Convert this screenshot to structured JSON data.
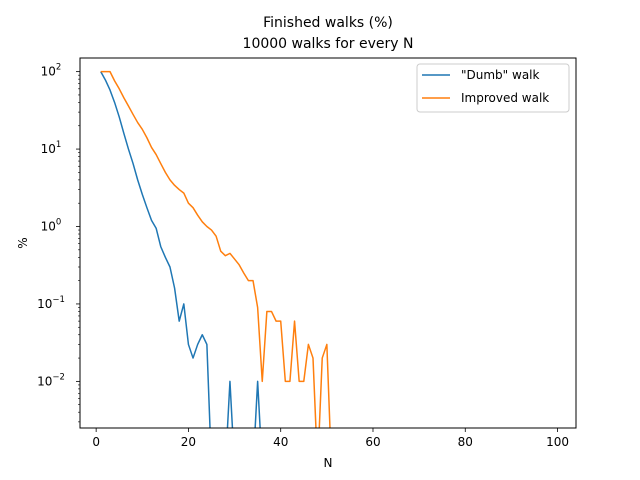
{
  "chart_data": {
    "type": "line",
    "title": "Finished walks (%)",
    "subtitle": "10000 walks for every N",
    "xlabel": "N",
    "ylabel": "%",
    "xlim": [
      -3.5,
      104
    ],
    "ylim": [
      0.0025,
      150
    ],
    "yscale": "log",
    "xticks": [
      0,
      20,
      40,
      60,
      80,
      100
    ],
    "yticks": [
      {
        "value": 0.01,
        "base": "10",
        "exp": "−2"
      },
      {
        "value": 0.1,
        "base": "10",
        "exp": "−1"
      },
      {
        "value": 1,
        "base": "10",
        "exp": "0"
      },
      {
        "value": 10,
        "base": "10",
        "exp": "1"
      },
      {
        "value": 100,
        "base": "10",
        "exp": "2"
      }
    ],
    "grid": false,
    "legend_position": "top-right",
    "series": [
      {
        "name": "\"Dumb\" walk",
        "color": "#1f77b4",
        "x": [
          1,
          2,
          3,
          4,
          5,
          6,
          7,
          8,
          9,
          10,
          11,
          12,
          13,
          14,
          15,
          16,
          17,
          18,
          19,
          20,
          21,
          22,
          23,
          24,
          25,
          26,
          27,
          28,
          29,
          30,
          31,
          32,
          33,
          34,
          35,
          36,
          37,
          38,
          39,
          40,
          41,
          42,
          43,
          44,
          45,
          46,
          47,
          48,
          49,
          50,
          51,
          52,
          53,
          54,
          55,
          56,
          57,
          58,
          59,
          60,
          61,
          62,
          63,
          64,
          65,
          66,
          67,
          68,
          69,
          70,
          71,
          72,
          73,
          74,
          75,
          76,
          77,
          78,
          79,
          80,
          81,
          82,
          83,
          84,
          85,
          86,
          87,
          88,
          89,
          90,
          91,
          92,
          93,
          94,
          95,
          96,
          97,
          98,
          99,
          100
        ],
        "y": [
          100,
          78,
          58,
          40,
          26,
          16,
          10,
          6.5,
          4,
          2.6,
          1.75,
          1.2,
          0.95,
          0.55,
          0.4,
          0.3,
          0.16,
          0.06,
          0.1,
          0.03,
          0.02,
          0.03,
          0.04,
          0.03,
          0,
          0,
          0,
          0,
          0.01,
          0,
          0,
          0,
          0,
          0,
          0.01,
          0,
          0,
          0,
          0,
          0,
          0,
          0,
          0,
          0,
          0,
          0,
          0,
          0,
          0,
          0,
          0,
          0,
          0,
          0,
          0,
          0,
          0,
          0,
          0,
          0,
          0,
          0,
          0,
          0,
          0,
          0,
          0,
          0,
          0,
          0,
          0,
          0,
          0,
          0,
          0,
          0,
          0,
          0,
          0,
          0,
          0,
          0,
          0,
          0,
          0,
          0,
          0,
          0,
          0,
          0,
          0,
          0,
          0,
          0,
          0,
          0,
          0,
          0,
          0,
          0
        ]
      },
      {
        "name": "Improved walk",
        "color": "#ff7f0e",
        "x": [
          1,
          2,
          3,
          4,
          5,
          6,
          7,
          8,
          9,
          10,
          11,
          12,
          13,
          14,
          15,
          16,
          17,
          18,
          19,
          20,
          21,
          22,
          23,
          24,
          25,
          26,
          27,
          28,
          29,
          30,
          31,
          32,
          33,
          34,
          35,
          36,
          37,
          38,
          39,
          40,
          41,
          42,
          43,
          44,
          45,
          46,
          47,
          48,
          49,
          50,
          51,
          52,
          53,
          54,
          55,
          56,
          57,
          58,
          59,
          60,
          61,
          62,
          63,
          64,
          65,
          66,
          67,
          68,
          69,
          70,
          71,
          72,
          73,
          74,
          75,
          76,
          77,
          78,
          79,
          80,
          81,
          82,
          83,
          84,
          85,
          86,
          87,
          88,
          89,
          90,
          91,
          92,
          93,
          94,
          95,
          96,
          97,
          98,
          99,
          100
        ],
        "y": [
          100,
          100,
          100,
          76,
          60,
          46,
          36,
          28,
          22,
          18,
          14,
          10.5,
          8.5,
          6.5,
          5,
          4,
          3.4,
          3,
          2.7,
          2,
          1.75,
          1.4,
          1.15,
          1,
          0.9,
          0.75,
          0.48,
          0.42,
          0.45,
          0.38,
          0.32,
          0.25,
          0.2,
          0.2,
          0.09,
          0.01,
          0.08,
          0.08,
          0.06,
          0.06,
          0.01,
          0.01,
          0.06,
          0.01,
          0.01,
          0.03,
          0.02,
          0,
          0.02,
          0.03,
          0,
          0,
          0,
          0,
          0,
          0,
          0,
          0,
          0,
          0,
          0,
          0,
          0,
          0,
          0,
          0,
          0,
          0,
          0,
          0,
          0,
          0,
          0,
          0,
          0,
          0,
          0,
          0,
          0,
          0,
          0,
          0,
          0,
          0,
          0,
          0,
          0,
          0,
          0,
          0,
          0,
          0,
          0,
          0,
          0,
          0,
          0,
          0,
          0,
          0
        ]
      }
    ]
  }
}
